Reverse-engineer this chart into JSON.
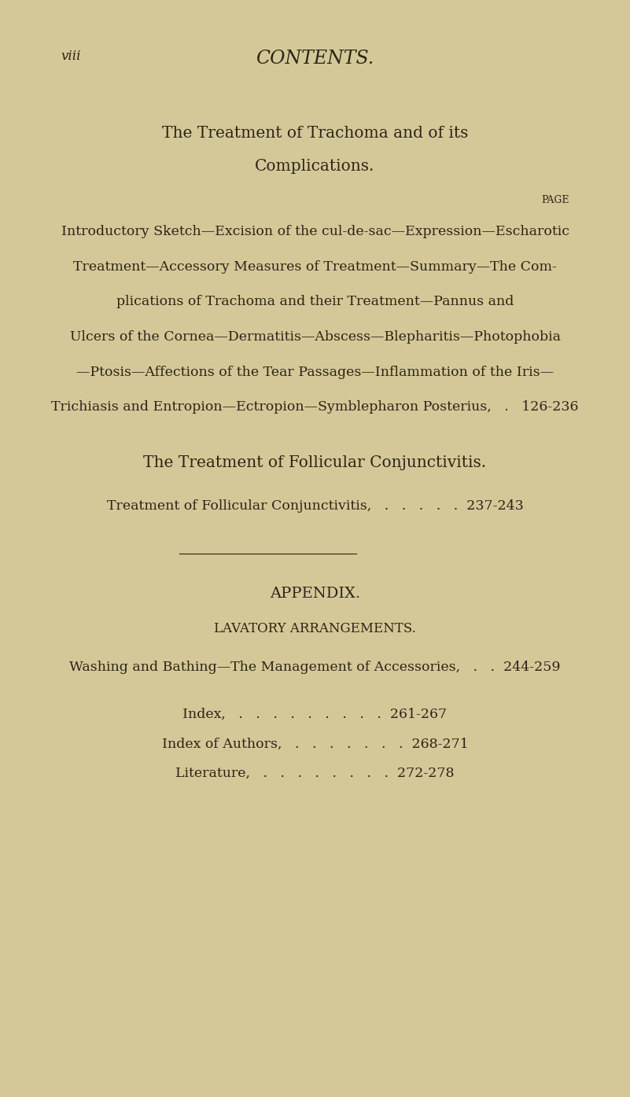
{
  "bg_color": "#d4c898",
  "text_color": "#2c2416",
  "page_label": "viii",
  "header": "CONTENTS.",
  "section1_title_line1": "The Treatment of Trachoma and of its",
  "section1_title_line2": "Complications.",
  "page_label_right": "PAGE",
  "section1_body": [
    "Introductory Sketch—Excision of the cul-de-sac—Expression—Escharotic",
    "Treatment—Accessory Measures of Treatment—Summary—The Com-",
    "plications of Trachoma and their Treatment—Pannus and",
    "Ulcers of the Cornea—Dermatitis—Abscess—Blepharitis—Photophobia",
    "—Ptosis—Affections of the Tear Passages—Inflammation of the Iris—",
    "Trichiasis and Entropion—Ectropion—Symblepharon Posterius,   .   126-236"
  ],
  "section2_title": "The Treatment of Follicular Conjunctivitis.",
  "section2_entry": "Treatment of Follicular Conjunctivitis,   .   .   .   .   .  237-243",
  "appendix_title": "APPENDIX.",
  "appendix_subtitle": "LAVATORY ARRANGEMENTS.",
  "appendix_entry": "Washing and Bathing—The Management of Accessories,   .   .  244-259",
  "index_entry": "Index,   .   .   .   .   .   .   .   .   .  261-267",
  "index_authors_entry": "Index of Authors,   .   .   .   .   .   .   .  268-271",
  "literature_entry": "Literature,   .   .   .   .   .   .   .   .  272-278"
}
